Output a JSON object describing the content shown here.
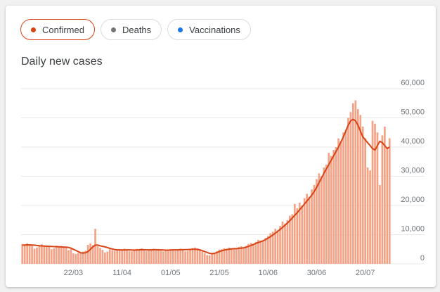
{
  "tabs": [
    {
      "label": "Confirmed",
      "color": "#d84315",
      "selected": true
    },
    {
      "label": "Deaths",
      "color": "#757575",
      "selected": false
    },
    {
      "label": "Vaccinations",
      "color": "#1a73e8",
      "selected": false
    }
  ],
  "chart_data": {
    "type": "bar",
    "title": "Daily new cases",
    "categories": [
      null,
      null,
      null,
      null,
      null,
      null,
      null,
      null,
      null,
      null,
      null,
      null,
      null,
      null,
      null,
      null,
      null,
      null,
      null,
      null,
      null,
      "22/03",
      null,
      null,
      null,
      null,
      null,
      null,
      null,
      null,
      null,
      null,
      null,
      null,
      null,
      null,
      null,
      null,
      null,
      null,
      null,
      "11/04",
      null,
      null,
      null,
      null,
      null,
      null,
      null,
      null,
      null,
      null,
      null,
      null,
      null,
      null,
      null,
      null,
      null,
      null,
      null,
      "01/05",
      null,
      null,
      null,
      null,
      null,
      null,
      null,
      null,
      null,
      null,
      null,
      null,
      null,
      null,
      null,
      null,
      null,
      null,
      null,
      "21/05",
      null,
      null,
      null,
      null,
      null,
      null,
      null,
      null,
      null,
      null,
      null,
      null,
      null,
      null,
      null,
      null,
      null,
      null,
      null,
      "10/06",
      null,
      null,
      null,
      null,
      null,
      null,
      null,
      null,
      null,
      null,
      null,
      null,
      null,
      null,
      null,
      null,
      null,
      null,
      null,
      "30/06",
      null,
      null,
      null,
      null,
      null,
      null,
      null,
      null,
      null,
      null,
      null,
      null,
      null,
      null,
      null,
      null,
      null,
      null,
      null,
      "20/07",
      null,
      null,
      null,
      null,
      null,
      null,
      null,
      null,
      null,
      null
    ],
    "series": [
      {
        "color": "#f4a285",
        "values": [
          6800,
          6500,
          7000,
          6600,
          6200,
          5200,
          5600,
          6400,
          6700,
          6300,
          6100,
          5900,
          5000,
          5300,
          6200,
          6000,
          6100,
          5800,
          5500,
          4700,
          5100,
          3600,
          3400,
          3700,
          3800,
          4200,
          4500,
          6500,
          7000,
          6400,
          12000,
          6000,
          5500,
          4800,
          3900,
          4200,
          5000,
          4700,
          4500,
          4600,
          4900,
          4800,
          5200,
          4600,
          4400,
          4300,
          5000,
          5100,
          4900,
          5300,
          4700,
          4400,
          4600,
          5000,
          5200,
          4800,
          5100,
          4500,
          4300,
          4700,
          4900,
          5000,
          4600,
          4500,
          4900,
          5200,
          4700,
          4300,
          4400,
          5100,
          5400,
          5600,
          5300,
          4800,
          4200,
          3600,
          3000,
          2900,
          3400,
          3700,
          4300,
          4900,
          5000,
          5300,
          5200,
          5600,
          5100,
          5000,
          5400,
          5800,
          6000,
          5500,
          6200,
          6800,
          7200,
          6900,
          7500,
          8200,
          8000,
          7800,
          8900,
          9500,
          10500,
          11000,
          12000,
          11500,
          13000,
          14500,
          13800,
          15000,
          16500,
          17000,
          20500,
          19000,
          21000,
          20000,
          22500,
          24000,
          23000,
          25500,
          27000,
          29000,
          31000,
          30000,
          33000,
          34000,
          38000,
          37000,
          39000,
          40000,
          43000,
          42000,
          45000,
          46000,
          50000,
          52000,
          55000,
          56000,
          53000,
          51000,
          47000,
          43000,
          33000,
          32000,
          49000,
          48000,
          45000,
          27000,
          44000,
          47000,
          40000,
          43000
        ]
      },
      {
        "type": "line",
        "color": "#d84315",
        "values": [
          6400,
          6450,
          6500,
          6500,
          6450,
          6400,
          6300,
          6200,
          6150,
          6100,
          6050,
          6000,
          5950,
          5900,
          5900,
          5850,
          5800,
          5750,
          5700,
          5600,
          5400,
          5000,
          4600,
          4200,
          3800,
          3700,
          3800,
          4200,
          5000,
          5800,
          6400,
          6400,
          6200,
          6000,
          5800,
          5600,
          5300,
          5100,
          4900,
          4800,
          4800,
          4750,
          4750,
          4800,
          4800,
          4750,
          4700,
          4750,
          4800,
          4850,
          4850,
          4800,
          4800,
          4800,
          4850,
          4850,
          4800,
          4800,
          4750,
          4700,
          4700,
          4750,
          4800,
          4800,
          4800,
          4850,
          4850,
          4900,
          4900,
          4950,
          5000,
          5000,
          4950,
          4800,
          4500,
          4200,
          3900,
          3600,
          3500,
          3600,
          3900,
          4200,
          4500,
          4700,
          4900,
          5000,
          5100,
          5200,
          5200,
          5300,
          5400,
          5500,
          5700,
          6000,
          6300,
          6600,
          7000,
          7300,
          7600,
          7900,
          8300,
          8800,
          9300,
          9900,
          10500,
          11100,
          11800,
          12500,
          13200,
          14000,
          14800,
          15700,
          16600,
          17500,
          18500,
          19500,
          20500,
          21500,
          22500,
          23500,
          24800,
          26200,
          27800,
          29400,
          31000,
          32500,
          34000,
          35500,
          37000,
          38500,
          40000,
          41800,
          43500,
          45500,
          47500,
          49000,
          49500,
          49000,
          47500,
          45500,
          43500,
          42500,
          41500,
          40500,
          39500,
          39000,
          40500,
          42000,
          41500,
          40500,
          39500,
          40000
        ]
      }
    ],
    "ylim": [
      0,
      60000
    ],
    "yticks": [
      0,
      {
        "value": 10000,
        "label": "10,000"
      },
      {
        "value": 20000,
        "label": "20,000"
      },
      {
        "value": 30000,
        "label": "30,000"
      },
      {
        "value": 40000,
        "label": "40,000"
      },
      {
        "value": 50000,
        "label": "50,000"
      },
      {
        "value": 60000,
        "label": "60,000"
      }
    ],
    "grid": true
  }
}
